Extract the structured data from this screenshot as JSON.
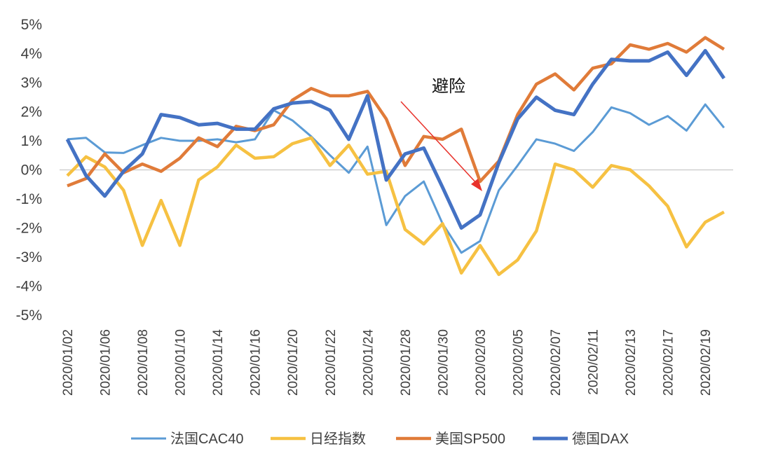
{
  "chart_data": {
    "type": "line",
    "title": "",
    "xlabel": "",
    "ylabel": "",
    "ylim": [
      -5,
      5
    ],
    "y_ticks": [
      "5%",
      "4%",
      "3%",
      "2%",
      "1%",
      "0%",
      "-1%",
      "-2%",
      "-3%",
      "-4%",
      "-5%"
    ],
    "y_tick_values": [
      5,
      4,
      3,
      2,
      1,
      0,
      -1,
      -2,
      -3,
      -4,
      -5
    ],
    "grid": false,
    "zero_line": true,
    "legend_position": "bottom",
    "categories": [
      "2020/01/02",
      "2020/01/03",
      "2020/01/06",
      "2020/01/07",
      "2020/01/08",
      "2020/01/09",
      "2020/01/10",
      "2020/01/13",
      "2020/01/14",
      "2020/01/15",
      "2020/01/16",
      "2020/01/17",
      "2020/01/20",
      "2020/01/21",
      "2020/01/22",
      "2020/01/23",
      "2020/01/24",
      "2020/01/27",
      "2020/01/28",
      "2020/01/29",
      "2020/01/30",
      "2020/01/31",
      "2020/02/03",
      "2020/02/04",
      "2020/02/05",
      "2020/02/06",
      "2020/02/07",
      "2020/02/10",
      "2020/02/11",
      "2020/02/12",
      "2020/02/13",
      "2020/02/14",
      "2020/02/17",
      "2020/02/18",
      "2020/02/19",
      "2020/02/20"
    ],
    "x_tick_labels_shown": [
      "2020/01/02",
      "2020/01/06",
      "2020/01/08",
      "2020/01/10",
      "2020/01/14",
      "2020/01/16",
      "2020/01/20",
      "2020/01/22",
      "2020/01/24",
      "2020/01/28",
      "2020/01/30",
      "2020/02/03",
      "2020/02/05",
      "2020/02/07",
      "2020/02/11",
      "2020/02/13",
      "2020/02/17",
      "2020/02/19"
    ],
    "series": [
      {
        "name": "法国CAC40",
        "color": "#5B9BD5",
        "values": [
          1.05,
          1.1,
          0.6,
          0.58,
          0.85,
          1.1,
          1.0,
          1.0,
          1.05,
          0.95,
          1.05,
          2.05,
          1.7,
          1.15,
          0.5,
          -0.1,
          0.8,
          -1.9,
          -0.9,
          -0.4,
          -1.85,
          -2.85,
          -2.45,
          -0.7,
          0.15,
          1.05,
          0.9,
          0.65,
          1.3,
          2.15,
          1.95,
          1.55,
          1.85,
          1.35,
          2.25,
          1.45
        ]
      },
      {
        "name": "日经指数",
        "color": "#F6C142",
        "values": [
          -0.2,
          0.45,
          0.1,
          -0.7,
          -2.6,
          -1.05,
          -2.6,
          -0.35,
          0.1,
          0.85,
          0.4,
          0.45,
          0.9,
          1.1,
          0.15,
          0.85,
          -0.15,
          -0.05,
          -2.05,
          -2.55,
          -1.85,
          -3.55,
          -2.6,
          -3.6,
          -3.1,
          -2.1,
          0.2,
          0.0,
          -0.6,
          0.15,
          0.0,
          -0.55,
          -1.25,
          -2.65,
          -1.8,
          -1.45
        ]
      },
      {
        "name": "美国SP500",
        "color": "#E07B39",
        "values": [
          -0.55,
          -0.3,
          0.55,
          -0.1,
          0.2,
          -0.05,
          0.4,
          1.1,
          0.8,
          1.5,
          1.35,
          1.55,
          2.4,
          2.8,
          2.55,
          2.55,
          2.7,
          1.75,
          0.15,
          1.15,
          1.05,
          1.4,
          -0.4,
          0.3,
          1.9,
          2.95,
          3.3,
          2.75,
          3.5,
          3.65,
          4.3,
          4.15,
          4.35,
          4.05,
          4.55,
          4.15
        ]
      },
      {
        "name": "德国DAX",
        "color": "#4472C4",
        "values": [
          1.05,
          -0.2,
          -0.9,
          -0.05,
          0.55,
          1.9,
          1.8,
          1.55,
          1.6,
          1.4,
          1.4,
          2.1,
          2.3,
          2.35,
          2.05,
          1.05,
          2.55,
          -0.35,
          0.55,
          0.75,
          -0.6,
          -2.0,
          -1.55,
          0.25,
          1.75,
          2.5,
          2.05,
          1.9,
          2.95,
          3.8,
          3.75,
          3.75,
          4.05,
          3.25,
          4.1,
          3.15
        ]
      }
    ],
    "annotations": [
      {
        "text": "避险",
        "arrow_color": "#E8322B",
        "arrow_from_category": "2020/01/28",
        "arrow_to_category": "2020/02/03"
      }
    ]
  }
}
